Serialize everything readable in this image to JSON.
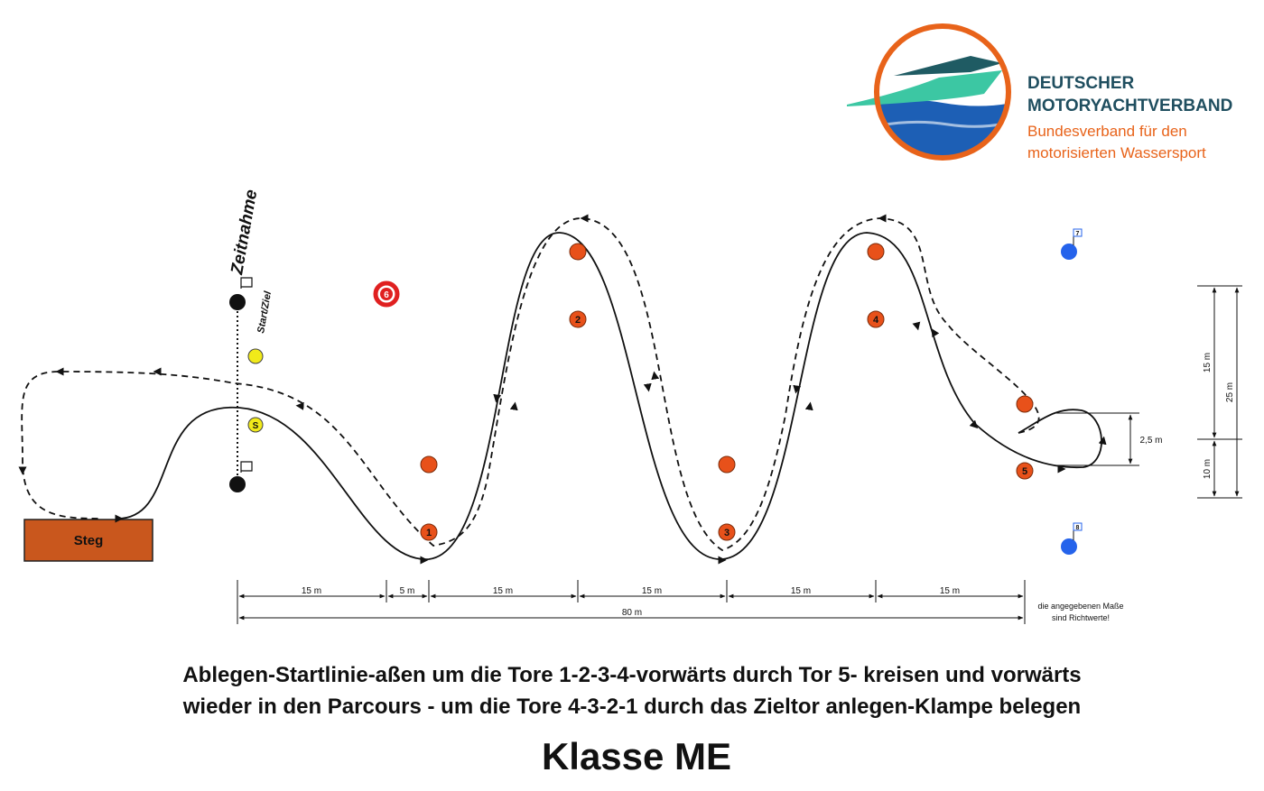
{
  "logo": {
    "line1": "DEUTSCHER",
    "line2": "MOTORYACHTVERBAND",
    "line3": "Bundesverband für den",
    "line4": "motorisierten Wassersport",
    "colors": {
      "ring": "#e8631a",
      "water": "#1d5fb5",
      "boat": "#3cc7a3",
      "boat_dark": "#1f5b63",
      "text_dark": "#1f4e5f"
    }
  },
  "course": {
    "timing_label": "Zeitnahme",
    "start_finish_label": "Start/Ziel",
    "dock_label": "Steg",
    "start_buoy_label": "S",
    "gate_labels": [
      "1",
      "2",
      "3",
      "4",
      "5"
    ],
    "lifebuoy_label": "6",
    "blue_buoy_labels": [
      "7",
      "8"
    ],
    "colors": {
      "gate": "#e8511a",
      "dock": "#c9571d",
      "start": "#f1ea1a",
      "blue": "#2563eb",
      "lifebuoy": "#e02020"
    }
  },
  "dimensions": {
    "segments": [
      "15 m",
      "5 m",
      "15 m",
      "15 m",
      "15 m",
      "15 m"
    ],
    "total": "80 m",
    "vertical": [
      "15 m",
      "25 m",
      "10 m",
      "2,5 m"
    ],
    "note_line1": "die angegebenen Maße",
    "note_line2": "sind Richtwerte!"
  },
  "description": {
    "line1": "Ablegen-Startlinie-aßen um die Tore 1-2-3-4-vorwärts durch Tor 5- kreisen und vorwärts",
    "line2": "wieder in den Parcours - um die Tore 4-3-2-1 durch das Zieltor anlegen-Klampe belegen"
  },
  "class_title": "Klasse ME"
}
